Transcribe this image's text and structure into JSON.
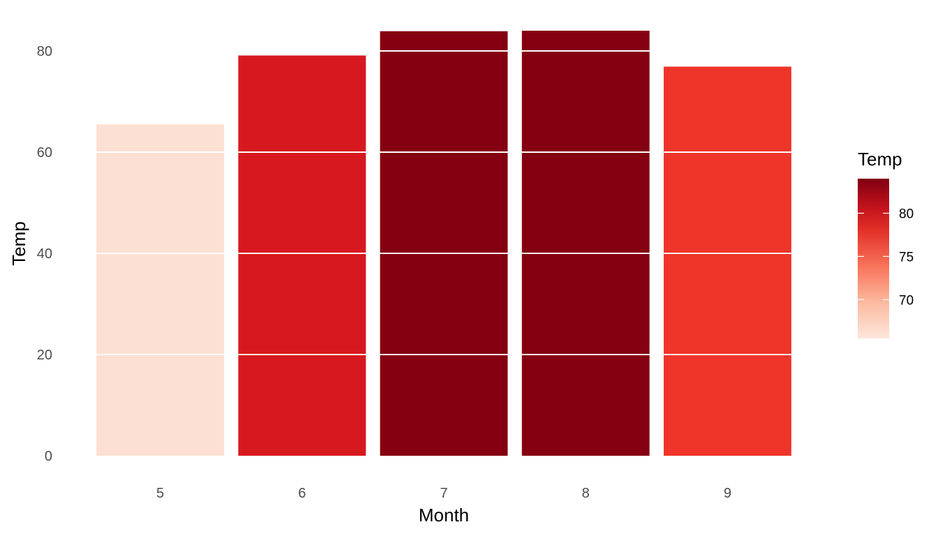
{
  "chart_data": {
    "type": "bar",
    "xlabel": "Month",
    "ylabel": "Temp",
    "categories": [
      "5",
      "6",
      "7",
      "8",
      "9"
    ],
    "values": [
      65.5,
      79.1,
      83.9,
      84.0,
      76.9
    ],
    "ylim": [
      0,
      84
    ],
    "yticks": [
      0,
      20,
      40,
      60,
      80
    ],
    "y_tick_labels": [
      "0",
      "20",
      "40",
      "60",
      "80"
    ],
    "grid": true,
    "fill_scale": "Reds",
    "legend": {
      "title": "Temp",
      "position": "right",
      "range": [
        65.5,
        84.0
      ],
      "ticks": [
        70,
        75,
        80
      ],
      "tick_labels": [
        "70",
        "75",
        "80"
      ]
    },
    "bar_colors": [
      "#FCE0D3",
      "#D7191F",
      "#850010",
      "#850010",
      "#EF3429"
    ]
  }
}
